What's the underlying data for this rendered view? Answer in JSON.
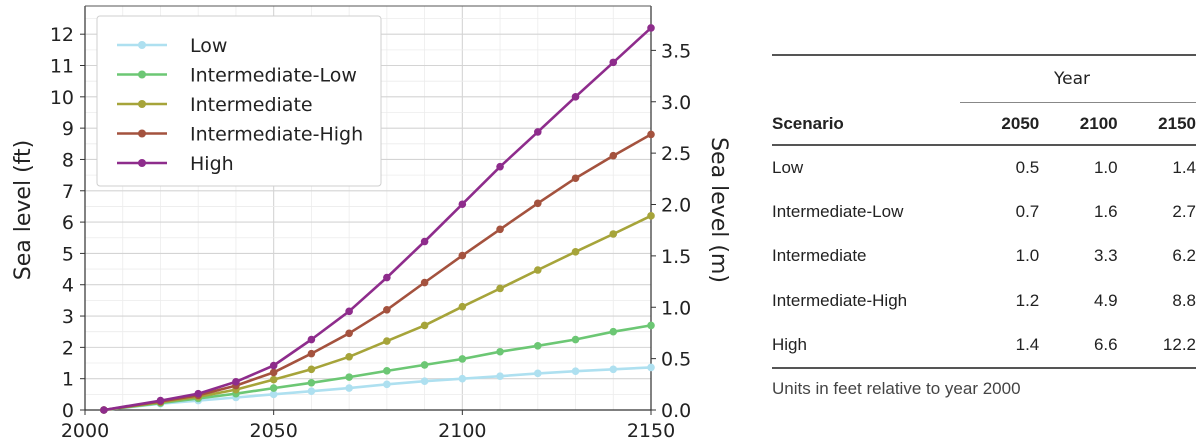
{
  "chart_data": {
    "type": "line",
    "x": [
      2005,
      2020,
      2030,
      2040,
      2050,
      2060,
      2070,
      2080,
      2090,
      2100,
      2110,
      2120,
      2130,
      2140,
      2150
    ],
    "xlim": [
      2000,
      2150
    ],
    "xticks": [
      "2000",
      "2050",
      "2100",
      "2150"
    ],
    "ylabel": "Sea level (ft)",
    "ylim": [
      0,
      12.9
    ],
    "yticks": [
      "0",
      "1",
      "2",
      "3",
      "4",
      "5",
      "6",
      "7",
      "8",
      "9",
      "10",
      "11",
      "12"
    ],
    "y2label": "Sea level (m)",
    "y2ticks": [
      "0.0",
      "0.5",
      "1.0",
      "1.5",
      "2.0",
      "2.5",
      "3.0",
      "3.5"
    ],
    "grid": true,
    "legend_position": "top-left",
    "series": [
      {
        "name": "Low",
        "color": "#aee0f0",
        "values": [
          0.0,
          0.2,
          0.3,
          0.4,
          0.5,
          0.6,
          0.7,
          0.82,
          0.92,
          1.0,
          1.08,
          1.17,
          1.24,
          1.3,
          1.36
        ]
      },
      {
        "name": "Intermediate-Low",
        "color": "#6cc774",
        "values": [
          0.0,
          0.22,
          0.37,
          0.52,
          0.7,
          0.87,
          1.05,
          1.25,
          1.44,
          1.63,
          1.86,
          2.05,
          2.25,
          2.5,
          2.7
        ]
      },
      {
        "name": "Intermediate",
        "color": "#a6a43a",
        "values": [
          0.0,
          0.25,
          0.42,
          0.65,
          0.97,
          1.3,
          1.7,
          2.2,
          2.7,
          3.3,
          3.88,
          4.47,
          5.05,
          5.62,
          6.2
        ]
      },
      {
        "name": "Intermediate-High",
        "color": "#a4523e",
        "values": [
          0.0,
          0.27,
          0.47,
          0.78,
          1.2,
          1.8,
          2.45,
          3.2,
          4.07,
          4.93,
          5.77,
          6.6,
          7.4,
          8.12,
          8.8
        ]
      },
      {
        "name": "High",
        "color": "#8e2c8c",
        "values": [
          0.0,
          0.3,
          0.52,
          0.9,
          1.42,
          2.25,
          3.15,
          4.23,
          5.38,
          6.57,
          7.77,
          8.88,
          10.0,
          11.1,
          12.2
        ]
      }
    ]
  },
  "table": {
    "year_header": "Year",
    "columns": [
      "Scenario",
      "2050",
      "2100",
      "2150"
    ],
    "rows": [
      [
        "Low",
        "0.5",
        "1.0",
        "1.4"
      ],
      [
        "Intermediate-Low",
        "0.7",
        "1.6",
        "2.7"
      ],
      [
        "Intermediate",
        "1.0",
        "3.3",
        "6.2"
      ],
      [
        "Intermediate-High",
        "1.2",
        "4.9",
        "8.8"
      ],
      [
        "High",
        "1.4",
        "6.6",
        "12.2"
      ]
    ],
    "note": "Units in feet relative to year 2000"
  }
}
